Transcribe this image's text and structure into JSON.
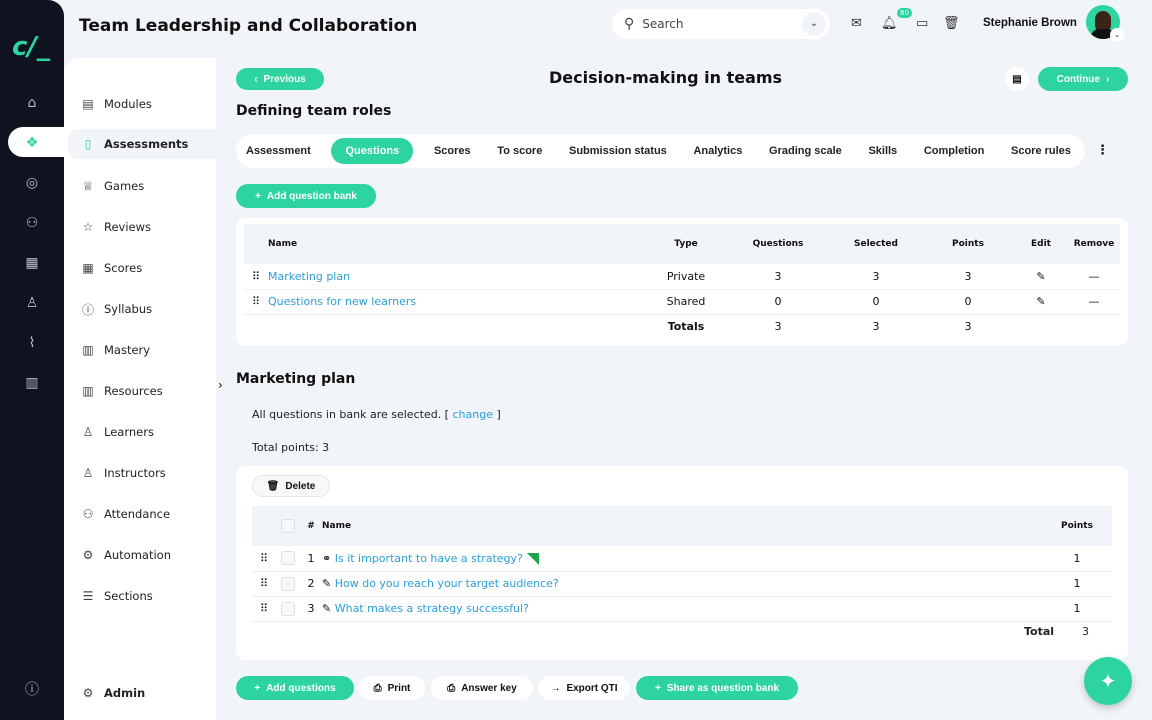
{
  "app": {
    "title": "Team Leadership and Collaboration",
    "accent": "#2dd4a0"
  },
  "header": {
    "search_placeholder": "Search",
    "notifications": "80",
    "user": "Stephanie Brown"
  },
  "sidebar": {
    "items": [
      {
        "label": "Modules",
        "icon": "book-icon"
      },
      {
        "label": "Assessments",
        "icon": "file-check-icon"
      },
      {
        "label": "Games",
        "icon": "trophy-icon"
      },
      {
        "label": "Reviews",
        "icon": "star-icon"
      },
      {
        "label": "Scores",
        "icon": "table-icon"
      },
      {
        "label": "Syllabus",
        "icon": "info-icon"
      },
      {
        "label": "Mastery",
        "icon": "bar-chart-icon"
      },
      {
        "label": "Resources",
        "icon": "books-icon"
      },
      {
        "label": "Learners",
        "icon": "user-icon"
      },
      {
        "label": "Instructors",
        "icon": "instructor-icon"
      },
      {
        "label": "Attendance",
        "icon": "users-icon"
      },
      {
        "label": "Automation",
        "icon": "gears-icon"
      },
      {
        "label": "Sections",
        "icon": "list-icon"
      }
    ],
    "admin": "Admin"
  },
  "nav": {
    "previous": "Previous",
    "continue": "Continue",
    "page_title": "Decision-making in teams",
    "section_title": "Defining team roles"
  },
  "tabs": [
    "Assessment",
    "Questions",
    "Scores",
    "To score",
    "Submission status",
    "Analytics",
    "Grading scale",
    "Skills",
    "Completion",
    "Score rules"
  ],
  "banks": {
    "add_label": "Add question bank",
    "headers": [
      "Name",
      "Type",
      "Questions",
      "Selected",
      "Points",
      "Edit",
      "Remove"
    ],
    "rows": [
      {
        "name": "Marketing plan",
        "type": "Private",
        "questions": "3",
        "selected": "3",
        "points": "3"
      },
      {
        "name": "Questions for new learners",
        "type": "Shared",
        "questions": "0",
        "selected": "0",
        "points": "0"
      }
    ],
    "totals": {
      "label": "Totals",
      "questions": "3",
      "selected": "3",
      "points": "3"
    }
  },
  "bank_detail": {
    "title": "Marketing plan",
    "selected_text": "All questions in bank are selected. [",
    "change": "change",
    "close_bracket": "]",
    "total_points": "Total points: 3",
    "delete": "Delete",
    "headers": [
      "#",
      "Name",
      "Points"
    ],
    "rows": [
      {
        "n": "1",
        "name": "Is it important to have a strategy?",
        "points": "1",
        "icon": "link-icon",
        "flag": true
      },
      {
        "n": "2",
        "name": "How do you reach your target audience?",
        "points": "1",
        "icon": "pencil-icon"
      },
      {
        "n": "3",
        "name": "What makes a strategy successful?",
        "points": "1",
        "icon": "pencil-icon"
      }
    ],
    "total_label": "Total",
    "total": "3"
  },
  "footer": {
    "add_questions": "Add questions",
    "print": "Print",
    "answer_key": "Answer key",
    "export": "Export QTI",
    "share": "Share as question bank"
  }
}
